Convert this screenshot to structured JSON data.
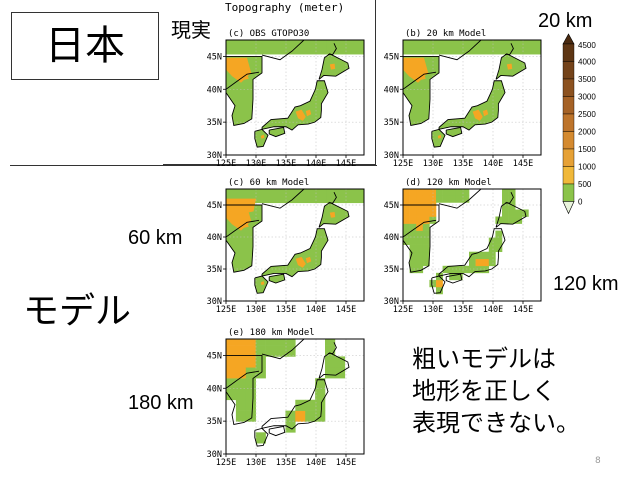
{
  "slide": {
    "title": "日本",
    "label_real": "現実",
    "label_20km": "20 km",
    "label_60km": "60 km",
    "label_120km": "120 km",
    "label_180km": "180 km",
    "label_model": "モデル",
    "description_lines": [
      "粗いモデルは",
      "地形を正しく",
      "表現できない。"
    ],
    "page_number": "8"
  },
  "figure": {
    "main_title": "Topography (meter)",
    "panels": [
      {
        "id": "obs",
        "title": "(c) OBS GTOPO30",
        "style": "fine"
      },
      {
        "id": "m20",
        "title": "(b) 20 km Model",
        "style": "fine"
      },
      {
        "id": "m60",
        "title": "(c) 60 km Model",
        "style": "mid"
      },
      {
        "id": "m120",
        "title": "(d) 120 km Model",
        "style": "coarse"
      },
      {
        "id": "m180",
        "title": "(e) 180 km Model",
        "style": "blocky"
      }
    ],
    "x_ticks": [
      "125E",
      "130E",
      "135E",
      "140E",
      "145E"
    ],
    "y_ticks": [
      "45N",
      "40N",
      "35N",
      "30N"
    ],
    "colorbar": {
      "labels": [
        "4500",
        "4000",
        "3500",
        "3000",
        "2500",
        "2000",
        "1500",
        "1000",
        "500",
        "0"
      ],
      "colors": [
        "#4a2a10",
        "#5e3614",
        "#74431a",
        "#8c5220",
        "#a56226",
        "#bd742b",
        "#d48a30",
        "#e6a136",
        "#f0b83a",
        "#8bc34a",
        "#e9f3dc"
      ]
    },
    "colors": {
      "land": "#8bc34a",
      "land_dark": "#7cb342",
      "high": "#f5a623",
      "ocean": "#ffffff",
      "coast": "#000000",
      "grid": "#bdbdbd"
    }
  }
}
